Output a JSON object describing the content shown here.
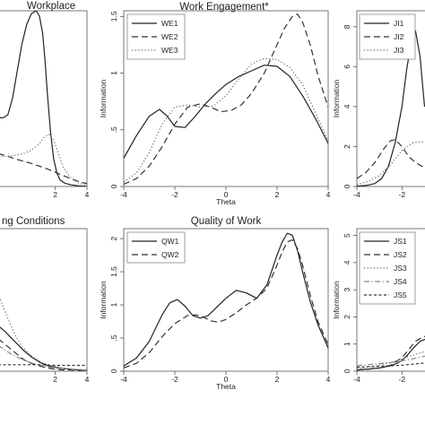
{
  "chart_data": [
    {
      "id": "p1",
      "type": "line",
      "title": "Workplace",
      "xlabel": "",
      "ylabel": "",
      "xlim": [
        -1.6,
        4
      ],
      "ylim": [
        0,
        3.2
      ],
      "xticks": [
        {
          "v": 2,
          "label": "2"
        },
        {
          "v": 4,
          "label": "4"
        }
      ],
      "yticks": [],
      "legend": "none",
      "series": [
        {
          "dash": "solid",
          "x": [
            -1.6,
            -1.3,
            -1,
            -0.7,
            -0.4,
            -0.1,
            0.2,
            0.5,
            0.8,
            1.0,
            1.2,
            1.35,
            1.5,
            1.7,
            1.9,
            2.1,
            2.3,
            2.6,
            3,
            3.5,
            4
          ],
          "y": [
            1.25,
            1.25,
            1.3,
            1.6,
            2.1,
            2.6,
            2.95,
            3.15,
            3.2,
            3.1,
            2.8,
            2.3,
            1.7,
            1.0,
            0.5,
            0.25,
            0.12,
            0.06,
            0.03,
            0.01,
            0.0
          ]
        },
        {
          "dash": "long",
          "x": [
            -1.6,
            -1,
            -0.5,
            0,
            0.5,
            1,
            1.5,
            2,
            2.5,
            3,
            3.5,
            4
          ],
          "y": [
            0.6,
            0.55,
            0.5,
            0.46,
            0.42,
            0.37,
            0.32,
            0.26,
            0.2,
            0.14,
            0.09,
            0.05
          ]
        },
        {
          "dash": "dot",
          "x": [
            -1.6,
            -1,
            -0.5,
            0,
            0.5,
            1,
            1.3,
            1.6,
            1.9,
            2.2,
            2.5,
            3,
            3.5,
            4
          ],
          "y": [
            0.55,
            0.55,
            0.57,
            0.6,
            0.66,
            0.78,
            0.9,
            0.95,
            0.85,
            0.6,
            0.35,
            0.15,
            0.06,
            0.02
          ]
        }
      ]
    },
    {
      "id": "p2",
      "type": "line",
      "title": "Work Engagement*",
      "xlabel": "Theta",
      "ylabel": "Information",
      "xlim": [
        -4,
        4
      ],
      "ylim": [
        0,
        1.55
      ],
      "xticks": [
        {
          "v": -4,
          "label": "-4"
        },
        {
          "v": -2,
          "label": "-2"
        },
        {
          "v": 0,
          "label": "0"
        },
        {
          "v": 2,
          "label": "2"
        },
        {
          "v": 4,
          "label": "4"
        }
      ],
      "yticks": [
        {
          "v": 0,
          "label": "0"
        },
        {
          "v": 0.5,
          "label": ".5"
        },
        {
          "v": 1,
          "label": "1"
        },
        {
          "v": 1.5,
          "label": "1.5"
        }
      ],
      "legend": "top-left",
      "series": [
        {
          "name": "WE1",
          "dash": "solid",
          "x": [
            -4,
            -3.5,
            -3,
            -2.6,
            -2.3,
            -2,
            -1.6,
            -1.2,
            -0.8,
            -0.4,
            0,
            0.5,
            1,
            1.5,
            2,
            2.5,
            3,
            3.5,
            4
          ],
          "y": [
            0.25,
            0.45,
            0.62,
            0.68,
            0.62,
            0.53,
            0.52,
            0.62,
            0.73,
            0.82,
            0.9,
            0.97,
            1.02,
            1.07,
            1.06,
            0.97,
            0.8,
            0.6,
            0.38
          ]
        },
        {
          "name": "WE2",
          "dash": "long",
          "x": [
            -4,
            -3.5,
            -3,
            -2.5,
            -2,
            -1.5,
            -1,
            -0.6,
            -0.2,
            0.2,
            0.6,
            1,
            1.5,
            2,
            2.3,
            2.6,
            2.8,
            3,
            3.3,
            3.6,
            4
          ],
          "y": [
            0.02,
            0.07,
            0.18,
            0.35,
            0.55,
            0.7,
            0.73,
            0.7,
            0.66,
            0.67,
            0.72,
            0.82,
            1.0,
            1.25,
            1.4,
            1.5,
            1.52,
            1.45,
            1.25,
            0.98,
            0.7
          ]
        },
        {
          "name": "WE3",
          "dash": "dot",
          "x": [
            -4,
            -3.5,
            -3,
            -2.5,
            -2,
            -1.5,
            -1,
            -0.5,
            0,
            0.5,
            1,
            1.5,
            2,
            2.5,
            3,
            3.5,
            4
          ],
          "y": [
            0.04,
            0.12,
            0.3,
            0.55,
            0.7,
            0.72,
            0.7,
            0.71,
            0.8,
            0.95,
            1.08,
            1.13,
            1.12,
            1.05,
            0.9,
            0.65,
            0.4
          ]
        }
      ]
    },
    {
      "id": "p3",
      "type": "line",
      "title": "",
      "xlabel": "",
      "ylabel": "Information",
      "xlim": [
        -4,
        -0.9
      ],
      "ylim": [
        0,
        8.8
      ],
      "xticks": [
        {
          "v": -4,
          "label": "-4"
        },
        {
          "v": -2,
          "label": "-2"
        }
      ],
      "yticks": [
        {
          "v": 0,
          "label": "0"
        },
        {
          "v": 2,
          "label": "2"
        },
        {
          "v": 4,
          "label": "4"
        },
        {
          "v": 6,
          "label": "6"
        },
        {
          "v": 8,
          "label": "8"
        }
      ],
      "legend": "top-left",
      "series": [
        {
          "name": "JI1",
          "dash": "solid",
          "x": [
            -4,
            -3.6,
            -3.2,
            -2.9,
            -2.6,
            -2.3,
            -2.0,
            -1.8,
            -1.6,
            -1.4,
            -1.2,
            -1.0
          ],
          "y": [
            0.02,
            0.05,
            0.15,
            0.4,
            1.0,
            2.2,
            4.0,
            5.8,
            7.2,
            7.8,
            6.5,
            4.0
          ]
        },
        {
          "name": "JI2",
          "dash": "long",
          "x": [
            -4,
            -3.6,
            -3.2,
            -2.8,
            -2.5,
            -2.3,
            -2.0,
            -1.7,
            -1.4,
            -1.1,
            -0.9
          ],
          "y": [
            0.4,
            0.7,
            1.2,
            1.9,
            2.3,
            2.35,
            2.0,
            1.5,
            1.2,
            1.0,
            0.9
          ]
        },
        {
          "name": "JI3",
          "dash": "dot",
          "x": [
            -4,
            -3.5,
            -3,
            -2.5,
            -2,
            -1.5,
            -1.0,
            -0.9
          ],
          "y": [
            0.1,
            0.25,
            0.55,
            1.1,
            1.8,
            2.2,
            2.25,
            2.2
          ]
        }
      ]
    },
    {
      "id": "p4",
      "type": "line",
      "title": "ng Conditions",
      "xlabel": "",
      "ylabel": "",
      "xlim": [
        -1.6,
        4
      ],
      "ylim": [
        0,
        2.2
      ],
      "xticks": [
        {
          "v": 2,
          "label": "2"
        },
        {
          "v": 4,
          "label": "4"
        }
      ],
      "yticks": [],
      "legend": "none",
      "series": [
        {
          "dash": "solid",
          "x": [
            -1.6,
            -1.2,
            -0.8,
            -0.4,
            0,
            0.5,
            1,
            1.5,
            2,
            2.5,
            3,
            3.5,
            4
          ],
          "y": [
            0.7,
            0.62,
            0.52,
            0.42,
            0.32,
            0.22,
            0.14,
            0.09,
            0.06,
            0.04,
            0.03,
            0.02,
            0.02
          ]
        },
        {
          "dash": "long",
          "x": [
            -1.6,
            -1.2,
            -0.8,
            -0.4,
            0,
            0.5,
            1,
            1.5,
            2,
            2.5,
            3,
            3.5,
            4
          ],
          "y": [
            0.5,
            0.42,
            0.34,
            0.26,
            0.18,
            0.12,
            0.08,
            0.05,
            0.03,
            0.02,
            0.02,
            0.01,
            0.01
          ]
        },
        {
          "dash": "dot",
          "x": [
            -1.6,
            -1.3,
            -1,
            -0.7,
            -0.4,
            -0.1,
            0.3,
            0.7,
            1.2,
            1.8,
            2.5,
            3.2,
            4
          ],
          "y": [
            1.2,
            1.0,
            0.82,
            0.65,
            0.5,
            0.38,
            0.28,
            0.2,
            0.13,
            0.08,
            0.05,
            0.03,
            0.02
          ]
        },
        {
          "dash": "dashdot",
          "x": [
            -1.6,
            -1.2,
            -0.8,
            -0.4,
            0,
            0.5,
            1,
            1.5,
            2,
            2.5,
            3,
            3.5,
            4
          ],
          "y": [
            0.4,
            0.33,
            0.27,
            0.22,
            0.17,
            0.13,
            0.1,
            0.07,
            0.05,
            0.04,
            0.03,
            0.02,
            0.02
          ]
        },
        {
          "dash": "short",
          "x": [
            -1.6,
            -1,
            0,
            1,
            2,
            3,
            4
          ],
          "y": [
            0.1,
            0.1,
            0.1,
            0.1,
            0.09,
            0.09,
            0.09
          ]
        }
      ]
    },
    {
      "id": "p5",
      "type": "line",
      "title": "Quality of Work",
      "xlabel": "Theta",
      "ylabel": "Information",
      "xlim": [
        -4,
        4
      ],
      "ylim": [
        0,
        2.15
      ],
      "xticks": [
        {
          "v": -4,
          "label": "-4"
        },
        {
          "v": -2,
          "label": "-2"
        },
        {
          "v": 0,
          "label": "0"
        },
        {
          "v": 2,
          "label": "2"
        },
        {
          "v": 4,
          "label": "4"
        }
      ],
      "yticks": [
        {
          "v": 0,
          "label": "0"
        },
        {
          "v": 0.5,
          "label": ".5"
        },
        {
          "v": 1,
          "label": "1"
        },
        {
          "v": 1.5,
          "label": "1.5"
        },
        {
          "v": 2,
          "label": "2"
        }
      ],
      "legend": "top-left",
      "series": [
        {
          "name": "QW1",
          "dash": "solid",
          "x": [
            -4,
            -3.5,
            -3,
            -2.5,
            -2.2,
            -1.9,
            -1.6,
            -1.3,
            -1,
            -0.7,
            -0.4,
            0,
            0.4,
            0.8,
            1.2,
            1.6,
            2,
            2.2,
            2.4,
            2.6,
            2.8,
            3,
            3.3,
            3.6,
            4
          ],
          "y": [
            0.08,
            0.2,
            0.45,
            0.85,
            1.03,
            1.08,
            0.98,
            0.84,
            0.8,
            0.84,
            0.95,
            1.1,
            1.22,
            1.18,
            1.1,
            1.3,
            1.75,
            1.95,
            2.08,
            2.05,
            1.82,
            1.5,
            1.05,
            0.7,
            0.35
          ]
        },
        {
          "name": "QW2",
          "dash": "long",
          "x": [
            -4,
            -3.5,
            -3,
            -2.5,
            -2,
            -1.5,
            -1.2,
            -0.9,
            -0.6,
            -0.3,
            0,
            0.4,
            0.8,
            1.2,
            1.6,
            2,
            2.2,
            2.4,
            2.6,
            2.8,
            3,
            3.3,
            3.6,
            4
          ],
          "y": [
            0.05,
            0.12,
            0.28,
            0.52,
            0.72,
            0.84,
            0.85,
            0.82,
            0.76,
            0.74,
            0.78,
            0.88,
            1.0,
            1.1,
            1.25,
            1.6,
            1.8,
            1.95,
            1.98,
            1.85,
            1.6,
            1.15,
            0.75,
            0.4
          ]
        }
      ]
    },
    {
      "id": "p6",
      "type": "line",
      "title": "",
      "xlabel": "",
      "ylabel": "Information",
      "xlim": [
        -4,
        -0.9
      ],
      "ylim": [
        0,
        5.25
      ],
      "xticks": [
        {
          "v": -4,
          "label": "-4"
        },
        {
          "v": -2,
          "label": "-2"
        }
      ],
      "yticks": [
        {
          "v": 0,
          "label": "0"
        },
        {
          "v": 1,
          "label": "1"
        },
        {
          "v": 2,
          "label": "2"
        },
        {
          "v": 3,
          "label": "3"
        },
        {
          "v": 4,
          "label": "4"
        },
        {
          "v": 5,
          "label": "5"
        }
      ],
      "legend": "top-left",
      "series": [
        {
          "name": "JS1",
          "dash": "solid",
          "x": [
            -4,
            -3.5,
            -3,
            -2.5,
            -2.2,
            -2.0,
            -1.8,
            -1.5,
            -1.2,
            -0.9
          ],
          "y": [
            0.05,
            0.08,
            0.12,
            0.2,
            0.3,
            0.4,
            0.55,
            0.85,
            1.1,
            1.2
          ]
        },
        {
          "name": "JS2",
          "dash": "long",
          "x": [
            -4,
            -3.5,
            -3,
            -2.5,
            -2,
            -1.7,
            -1.4,
            -1.1,
            -0.9
          ],
          "y": [
            0.04,
            0.07,
            0.12,
            0.22,
            0.5,
            0.8,
            1.1,
            1.25,
            1.3
          ]
        },
        {
          "name": "JS3",
          "dash": "dot",
          "x": [
            -4,
            -3.5,
            -3,
            -2.5,
            -2,
            -1.5,
            -1.0,
            -0.9
          ],
          "y": [
            0.1,
            0.15,
            0.22,
            0.32,
            0.45,
            0.6,
            0.72,
            0.75
          ]
        },
        {
          "name": "JS4",
          "dash": "dashdot",
          "x": [
            -4,
            -3.5,
            -3,
            -2.5,
            -2,
            -1.5,
            -1.0,
            -0.9
          ],
          "y": [
            0.2,
            0.24,
            0.28,
            0.32,
            0.38,
            0.46,
            0.55,
            0.58
          ]
        },
        {
          "name": "JS5",
          "dash": "short",
          "x": [
            -4,
            -3,
            -2,
            -1.5,
            -1.0,
            -0.9
          ],
          "y": [
            0.15,
            0.18,
            0.22,
            0.26,
            0.3,
            0.32
          ]
        }
      ]
    }
  ]
}
